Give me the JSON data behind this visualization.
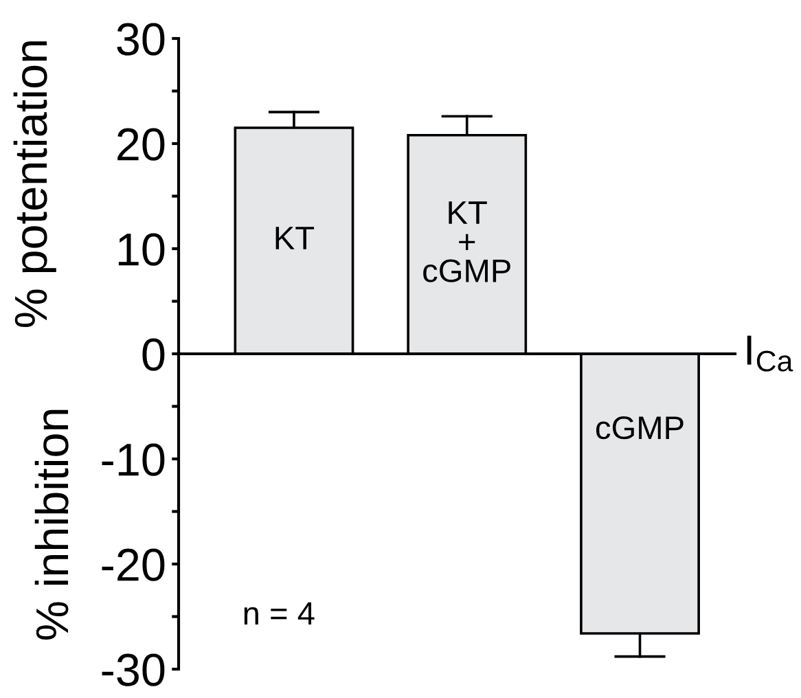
{
  "chart_data": {
    "type": "bar",
    "categories": [
      "KT",
      "KT\n+\ncGMP",
      "cGMP"
    ],
    "values": [
      21.5,
      20.8,
      -26.6
    ],
    "errors": [
      [
        21.5,
        23.0
      ],
      [
        20.8,
        22.6
      ],
      [
        -28.8,
        -26.6
      ]
    ],
    "color": "#e6e7e9",
    "ylabel": "% potentiation",
    "xlabel": "I$_{Ca}$",
    "annotations": [
      "% inhibition",
      "n = 4"
    ],
    "ylim": [
      -30,
      30
    ],
    "yticks": [
      -30,
      {
        "value": -25,
        "label": null
      },
      -20,
      {
        "value": -15,
        "label": null
      },
      -10,
      {
        "value": -5,
        "label": null
      },
      0,
      {
        "value": 5,
        "label": null
      },
      10,
      {
        "value": 15,
        "label": null
      },
      20,
      {
        "value": 25,
        "label": null
      },
      30
    ],
    "grid": false,
    "legend": false
  }
}
